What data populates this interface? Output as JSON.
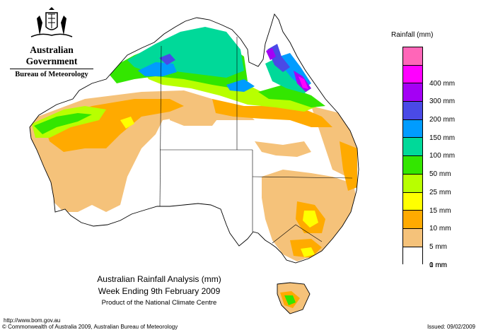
{
  "header": {
    "government": "Australian Government",
    "bureau": "Bureau of Meteorology"
  },
  "legend": {
    "title": "Rainfall (mm)",
    "items": [
      {
        "label": "",
        "color": "#ff66b8"
      },
      {
        "label": "400 mm",
        "color": "#ff00ff"
      },
      {
        "label": "300 mm",
        "color": "#a400f5"
      },
      {
        "label": "200 mm",
        "color": "#4a4ae6"
      },
      {
        "label": "150 mm",
        "color": "#009cff"
      },
      {
        "label": "100 mm",
        "color": "#00d999"
      },
      {
        "label": "50 mm",
        "color": "#33e600"
      },
      {
        "label": "25 mm",
        "color": "#b8ff00"
      },
      {
        "label": "15 mm",
        "color": "#ffff00"
      },
      {
        "label": "10 mm",
        "color": "#ffaa00"
      },
      {
        "label": "5 mm",
        "color": "#f5c27a"
      },
      {
        "label": "1 mm",
        "color": "#ffffff"
      },
      {
        "label": "0 mm",
        "color": null
      }
    ]
  },
  "caption": {
    "line1": "Australian Rainfall Analysis (mm)",
    "line2": "Week Ending 9th February 2009",
    "line3": "Product of the National Climate Centre"
  },
  "footer": {
    "url": "http://www.bom.gov.au",
    "copyright": "© Commonwealth of Australia 2009, Australian Bureau of Meteorology",
    "issued": "Issued: 09/02/2009"
  }
}
